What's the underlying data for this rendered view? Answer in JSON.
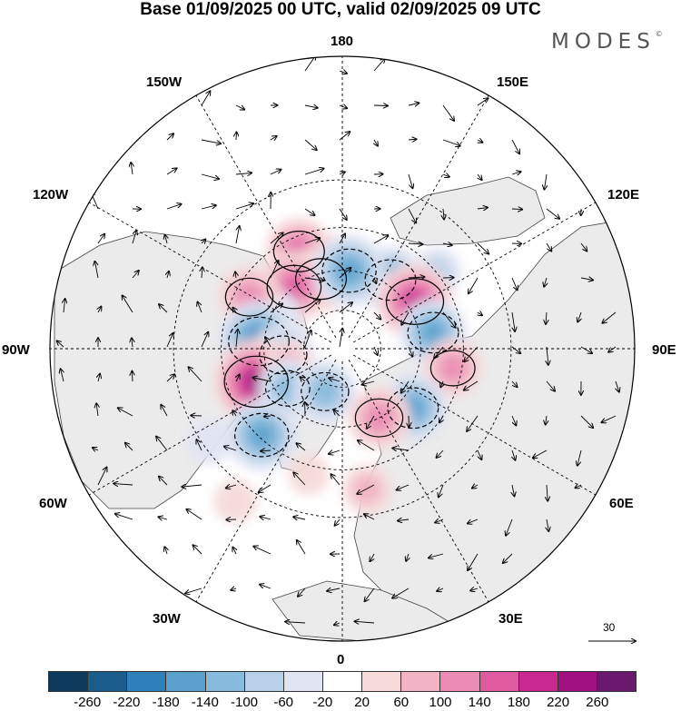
{
  "header": {
    "title": "Base 01/09/2025 00 UTC, valid 02/09/2025 09 UTC",
    "brand": "MODES",
    "brand_mark": "©"
  },
  "map": {
    "projection": "north polar stereographic",
    "longitude_labels": {
      "180": "180",
      "150E": "150E",
      "120E": "120E",
      "90E": "90E",
      "60E": "60E",
      "30E": "30E",
      "0": "0",
      "30W": "30W",
      "60W": "60W",
      "90W": "90W",
      "120W": "120W",
      "150W": "150W"
    },
    "reference_vector": {
      "value": "30"
    }
  },
  "colorbar": {
    "colors": [
      "#0d3a5c",
      "#1a5c8c",
      "#2f80b8",
      "#5aa0cd",
      "#86bbdd",
      "#b7cfe8",
      "#e1e4f3",
      "#ffffff",
      "#f7dada",
      "#f2b4c4",
      "#ec8cb4",
      "#e05aa2",
      "#c82890",
      "#a01080",
      "#6a1870"
    ],
    "ticks": [
      "-260",
      "-220",
      "-180",
      "-140",
      "-100",
      "-60",
      "-20",
      "20",
      "60",
      "100",
      "140",
      "180",
      "220",
      "260"
    ]
  },
  "anomalies": [
    {
      "id": "a01",
      "lat": 55,
      "lon": -178,
      "value": 60
    },
    {
      "id": "a02",
      "lat": 58,
      "lon": 145,
      "value": -160
    },
    {
      "id": "a03",
      "lat": 50,
      "lon": -156,
      "value": 160
    },
    {
      "id": "a04",
      "lat": 62,
      "lon": -163,
      "value": 160
    },
    {
      "id": "a05",
      "lat": 60,
      "lon": -142,
      "value": 180
    },
    {
      "id": "a06",
      "lat": 60,
      "lon": 175,
      "value": -180
    },
    {
      "id": "a07",
      "lat": 45,
      "lon": 129,
      "value": -80
    },
    {
      "id": "a08",
      "lat": 57,
      "lon": 123,
      "value": 200
    },
    {
      "id": "a09",
      "lat": 55,
      "lon": 100,
      "value": -160
    },
    {
      "id": "a10",
      "lat": 62,
      "lon": -118,
      "value": -60
    },
    {
      "id": "a11",
      "lat": 50,
      "lon": -119,
      "value": 140
    },
    {
      "id": "a12",
      "lat": 58,
      "lon": -95,
      "value": -220
    },
    {
      "id": "a13",
      "lat": 67,
      "lon": -84,
      "value": -140
    },
    {
      "id": "a14",
      "lat": 48,
      "lon": 80,
      "value": 120
    },
    {
      "id": "a15",
      "lat": 55,
      "lon": -69,
      "value": 240
    },
    {
      "id": "a16",
      "lat": 68,
      "lon": -74,
      "value": 80
    },
    {
      "id": "a17",
      "lat": 64,
      "lon": -54,
      "value": -120
    },
    {
      "id": "a18",
      "lat": 46,
      "lon": -43,
      "value": -180
    },
    {
      "id": "a19",
      "lat": 72,
      "lon": -22,
      "value": -140
    },
    {
      "id": "a20",
      "lat": 55,
      "lon": 50,
      "value": -160
    },
    {
      "id": "a21",
      "lat": 60,
      "lon": 28,
      "value": 140
    },
    {
      "id": "a22",
      "lat": 38,
      "lon": 10,
      "value": 80
    },
    {
      "id": "a23",
      "lat": 42,
      "lon": -15,
      "value": 40
    },
    {
      "id": "a24",
      "lat": 25,
      "lon": -35,
      "value": 50
    },
    {
      "id": "a25",
      "lat": 32,
      "lon": -55,
      "value": -60
    }
  ]
}
